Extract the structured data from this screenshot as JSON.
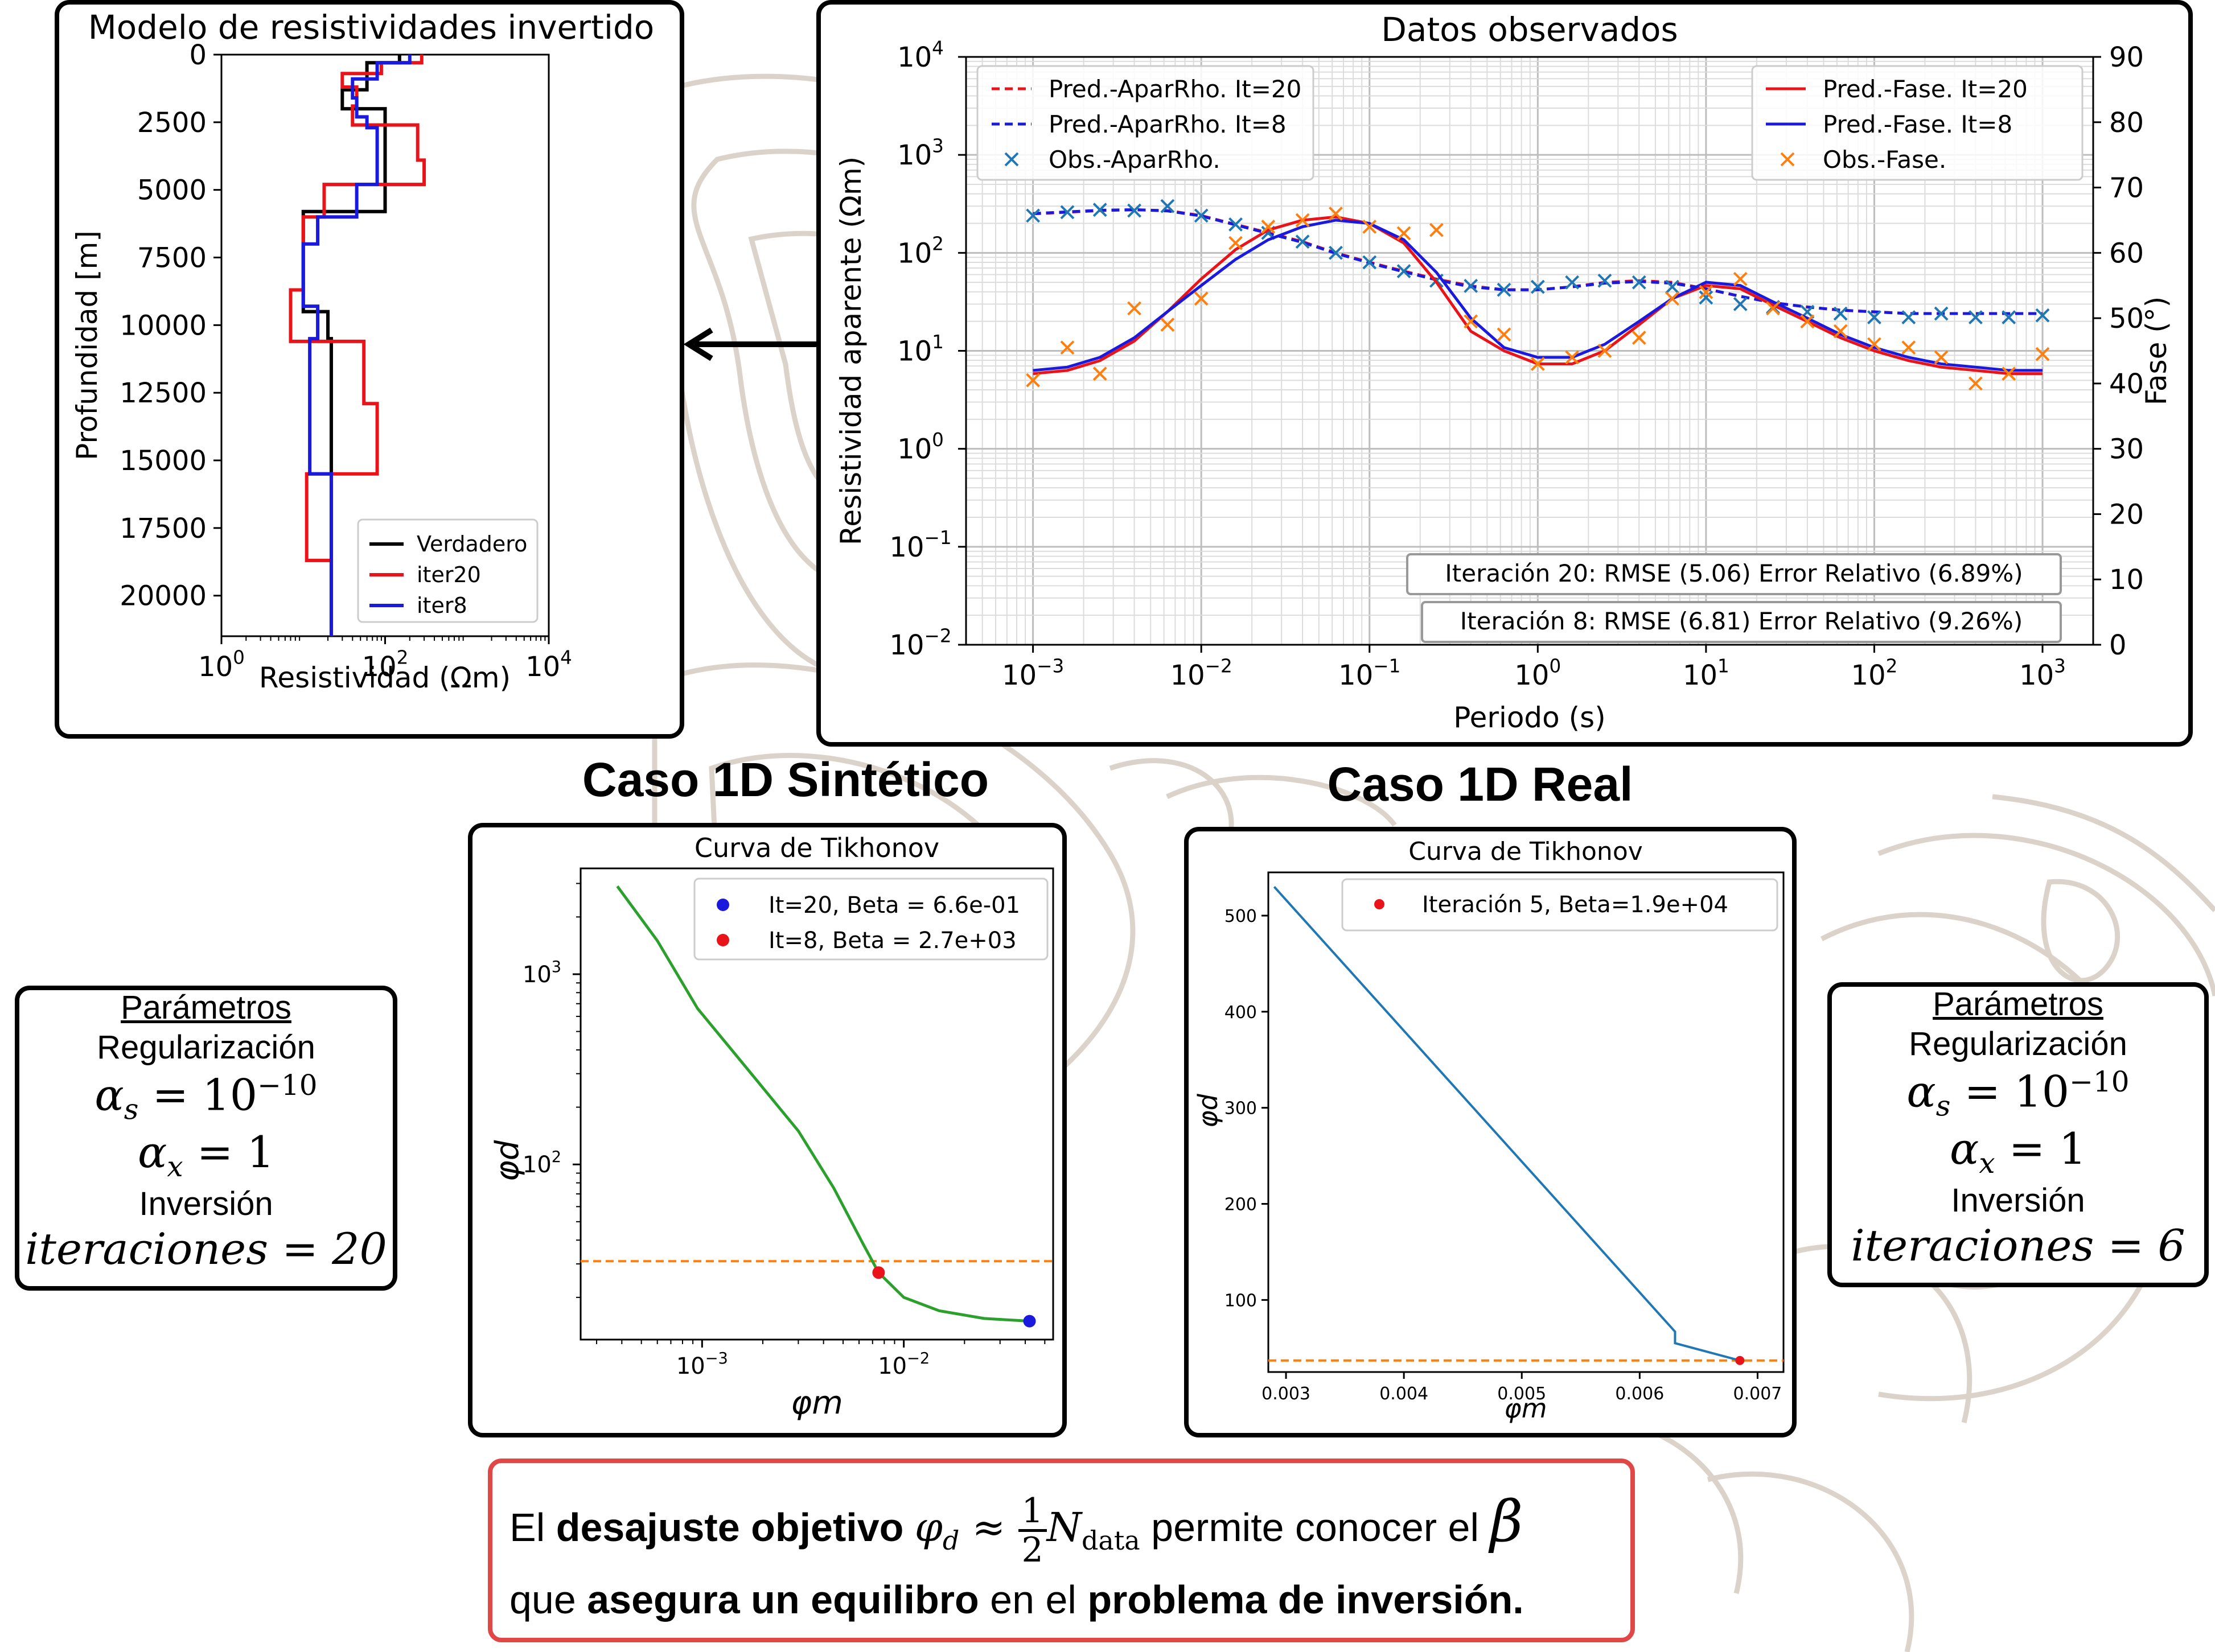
{
  "colors": {
    "black": "#000000",
    "red": "#e8141a",
    "blue": "#1a1adc",
    "orange": "#ff7f0e",
    "steelblue": "#1f77b4",
    "green": "#2ca02c",
    "border_red": "#e04848",
    "contour": "#d8cfc4"
  },
  "headings": {
    "synthetic": "Caso 1D Sintético",
    "real": "Caso 1D Real"
  },
  "params_left": {
    "title": "Parámetros",
    "reg": "Regularización",
    "alpha_s": "α",
    "alpha_s_sub": "s",
    "alpha_s_val": " = 10",
    "alpha_s_exp": "−10",
    "alpha_x": "α",
    "alpha_x_sub": "x",
    "alpha_x_val": " = 1",
    "inv": "Inversión",
    "iter": "iteraciones = 20"
  },
  "params_right": {
    "title": "Parámetros",
    "reg": "Regularización",
    "alpha_s": "α",
    "alpha_s_sub": "s",
    "alpha_s_val": " = 10",
    "alpha_s_exp": "−10",
    "alpha_x": "α",
    "alpha_x_sub": "x",
    "alpha_x_val": " = 1",
    "inv": "Inversión",
    "iter": "iteraciones = 6"
  },
  "bottom": {
    "t1": "El ",
    "b1": "desajuste objetivo",
    "m1": "φ",
    "m1sub": "d",
    "m2": " ≈ ",
    "num": "1",
    "den": "2",
    "m3": "N",
    "m3sub": "data",
    "t2": " permite conocer el ",
    "beta": "β",
    "t3": "que ",
    "b2": "asegura un equilibro",
    "t4": " en el ",
    "b3": "problema de inversión."
  },
  "chart_data": [
    {
      "type": "line",
      "title": "Modelo de resistividades invertido",
      "xlabel": "Resistividad (Ωm)",
      "ylabel": "Profundidad [m]",
      "xscale": "log",
      "xlim": [
        1,
        10000
      ],
      "ylim": [
        21500,
        0
      ],
      "xticks": [
        "10",
        "10",
        "10"
      ],
      "xtick_exps": [
        "0",
        "2",
        "4"
      ],
      "yticks": [
        "0",
        "2500",
        "5000",
        "7500",
        "10000",
        "12500",
        "15000",
        "17500",
        "20000"
      ],
      "legend_loc": "lower right",
      "series": [
        {
          "name": "Verdadero",
          "color": "#000000",
          "steps": [
            [
              0,
              150
            ],
            [
              300,
              60
            ],
            [
              1300,
              30
            ],
            [
              2000,
              100
            ],
            [
              5800,
              10
            ],
            [
              9500,
              20
            ],
            [
              10500,
              22
            ],
            [
              21500,
              22
            ]
          ]
        },
        {
          "name": "iter20",
          "color": "#e8141a",
          "steps": [
            [
              0,
              280
            ],
            [
              300,
              90
            ],
            [
              700,
              30
            ],
            [
              1200,
              45
            ],
            [
              1900,
              40
            ],
            [
              2600,
              250
            ],
            [
              3900,
              300
            ],
            [
              4800,
              18
            ],
            [
              6000,
              10
            ],
            [
              8700,
              7
            ],
            [
              10600,
              55
            ],
            [
              12900,
              80
            ],
            [
              15500,
              11
            ],
            [
              18700,
              22
            ],
            [
              21500,
              22
            ]
          ]
        },
        {
          "name": "iter8",
          "color": "#1a1adc",
          "steps": [
            [
              0,
              200
            ],
            [
              300,
              80
            ],
            [
              900,
              40
            ],
            [
              1600,
              45
            ],
            [
              2300,
              60
            ],
            [
              2700,
              80
            ],
            [
              4800,
              45
            ],
            [
              6000,
              15
            ],
            [
              7000,
              10
            ],
            [
              9300,
              15
            ],
            [
              10500,
              12
            ],
            [
              15500,
              22
            ],
            [
              21500,
              22
            ]
          ]
        }
      ]
    },
    {
      "type": "line",
      "title": "Datos observados",
      "xlabel": "Periodo (s)",
      "ylabel": "Resistividad aparente (Ωm)",
      "ylabel_right": "Fase (°)",
      "xscale": "log",
      "yscale": "log",
      "xlim": [
        0.0004,
        2000
      ],
      "ylim": [
        0.01,
        10000
      ],
      "ylim_right": [
        0,
        90
      ],
      "xtick_exps": [
        "−3",
        "−2",
        "−1",
        "0",
        "1",
        "2",
        "3"
      ],
      "ytick_exps": [
        "4",
        "3",
        "2",
        "1",
        "0",
        "−1",
        "−2"
      ],
      "yticks_right": [
        "90",
        "80",
        "70",
        "60",
        "50",
        "40",
        "30",
        "20",
        "10",
        "0"
      ],
      "legend_left": [
        "Pred.-AparRho. It=20",
        "Pred.-AparRho. It=8",
        "Obs.-AparRho."
      ],
      "legend_right": [
        "Pred.-Fase. It=20",
        "Pred.-Fase. It=8",
        "Obs.-Fase."
      ],
      "annotations": [
        "Iteración 20: RMSE (5.06) Error Relativo (6.89%)",
        "Iteración 8: RMSE (6.81) Error Relativo (9.26%)"
      ],
      "periods": [
        0.001,
        0.0016,
        0.0025,
        0.004,
        0.0063,
        0.01,
        0.016,
        0.025,
        0.04,
        0.063,
        0.1,
        0.16,
        0.25,
        0.4,
        0.63,
        1,
        1.6,
        2.5,
        4,
        6.3,
        10,
        16,
        25,
        40,
        63,
        100,
        160,
        250,
        400,
        630,
        1000
      ],
      "series": [
        {
          "name": "Pred.-AparRho. It=20",
          "color": "#e8141a",
          "dash": true,
          "axis": "left",
          "y": [
            250,
            260,
            270,
            275,
            270,
            240,
            195,
            160,
            130,
            100,
            80,
            65,
            54,
            46,
            42,
            42,
            45,
            50,
            52,
            50,
            43,
            36,
            31,
            28,
            26,
            25,
            24,
            24,
            24,
            24,
            24
          ]
        },
        {
          "name": "Pred.-AparRho. It=8",
          "color": "#1a1adc",
          "dash": true,
          "axis": "left",
          "y": [
            252,
            262,
            272,
            276,
            268,
            238,
            193,
            158,
            128,
            99,
            79,
            64,
            53,
            45,
            42,
            42,
            45,
            49,
            51,
            49,
            43,
            36,
            31,
            28,
            26,
            25,
            24,
            24,
            24,
            24,
            24
          ]
        },
        {
          "name": "Obs.-AparRho.",
          "color": "#1f77b4",
          "marker": "x",
          "axis": "left",
          "periods": [
            0.001,
            0.0016,
            0.0025,
            0.004,
            0.0063,
            0.01,
            0.016,
            0.025,
            0.04,
            0.063,
            0.1,
            0.16,
            0.25,
            0.4,
            0.63,
            1,
            1.6,
            2.5,
            4,
            6.3,
            10,
            16,
            25,
            40,
            63,
            100,
            160,
            250,
            400,
            630,
            1000
          ],
          "y": [
            240,
            260,
            275,
            270,
            300,
            240,
            195,
            160,
            130,
            100,
            80,
            65,
            52,
            46,
            42,
            45,
            50,
            52,
            50,
            45,
            35,
            30,
            28,
            25,
            24,
            22,
            22,
            24,
            22,
            22,
            23
          ]
        },
        {
          "name": "Pred.-Fase. It=20",
          "color": "#e8141a",
          "axis": "right",
          "y": [
            41.5,
            42,
            43.5,
            46.5,
            51,
            56,
            60.5,
            63.5,
            65,
            65.5,
            64.5,
            61.5,
            55.5,
            48,
            45,
            43,
            43,
            45,
            49,
            53,
            55,
            54.5,
            52,
            49.5,
            47,
            45,
            43.5,
            42.5,
            42,
            41.5,
            41.5
          ]
        },
        {
          "name": "Pred.-Fase. It=8",
          "color": "#1a1adc",
          "axis": "right",
          "y": [
            42,
            42.5,
            44,
            47,
            51,
            55,
            59,
            62,
            64,
            65,
            64.5,
            62,
            57,
            50,
            45.5,
            44,
            44,
            46,
            49.5,
            53,
            55.5,
            55,
            52.5,
            50,
            47.5,
            45.5,
            44,
            43,
            42.5,
            42,
            42
          ]
        },
        {
          "name": "Obs.-Fase.",
          "color": "#ff7f0e",
          "marker": "x",
          "axis": "right",
          "periods": [
            0.001,
            0.0016,
            0.0025,
            0.004,
            0.0063,
            0.01,
            0.016,
            0.025,
            0.04,
            0.063,
            0.1,
            0.16,
            0.25,
            0.4,
            0.63,
            1,
            1.6,
            2.5,
            4,
            6.3,
            10,
            16,
            25,
            40,
            63,
            100,
            160,
            250,
            400,
            630,
            1000
          ],
          "y": [
            40.5,
            45.5,
            41.5,
            51.5,
            49,
            53,
            61.5,
            64,
            65,
            66,
            64,
            63,
            63.5,
            49.5,
            47.5,
            43,
            44,
            45,
            47,
            53,
            54,
            56,
            51.5,
            49.5,
            48,
            46,
            45.5,
            44,
            40,
            41.5,
            44.5
          ]
        }
      ]
    },
    {
      "type": "line",
      "title": "Curva de Tikhonov",
      "xlabel": "φm",
      "ylabel": "φd",
      "xscale": "log",
      "yscale": "log",
      "xlim": [
        0.00025,
        0.055
      ],
      "ylim": [
        12,
        3600
      ],
      "xtick_exps": [
        "−3",
        "−2"
      ],
      "ytick_exps": [
        "3",
        "2"
      ],
      "target_misfit": 31,
      "series": [
        {
          "name": "curve",
          "color": "#2ca02c",
          "x": [
            0.00038,
            0.0006,
            0.00095,
            0.0018,
            0.003,
            0.0045,
            0.0063,
            0.0075,
            0.01,
            0.015,
            0.025,
            0.042
          ],
          "y": [
            2900,
            1500,
            660,
            290,
            150,
            75,
            38,
            27,
            20,
            17,
            15.5,
            15
          ]
        }
      ],
      "points": [
        {
          "name": "It=20, Beta = 6.6e-01",
          "color": "#1a1adc",
          "x": 0.042,
          "y": 15
        },
        {
          "name": "It=8, Beta = 2.7e+03",
          "color": "#e8141a",
          "x": 0.0075,
          "y": 27
        }
      ]
    },
    {
      "type": "line",
      "title": "Curva de Tikhonov",
      "xlabel": "φm",
      "ylabel": "φd",
      "xlim": [
        0.00285,
        0.00722
      ],
      "ylim": [
        25,
        545
      ],
      "xticks": [
        "0.003",
        "0.004",
        "0.005",
        "0.006",
        "0.007"
      ],
      "yticks": [
        "100",
        "200",
        "300",
        "400",
        "500"
      ],
      "target_misfit": 37,
      "series": [
        {
          "name": "curve",
          "color": "#1f77b4",
          "x": [
            0.0029,
            0.0063,
            0.0063,
            0.00685
          ],
          "y": [
            530,
            67,
            55,
            37
          ]
        }
      ],
      "points": [
        {
          "name": "Iteración 5, Beta=1.9e+04",
          "color": "#e8141a",
          "x": 0.00685,
          "y": 37
        }
      ]
    }
  ]
}
